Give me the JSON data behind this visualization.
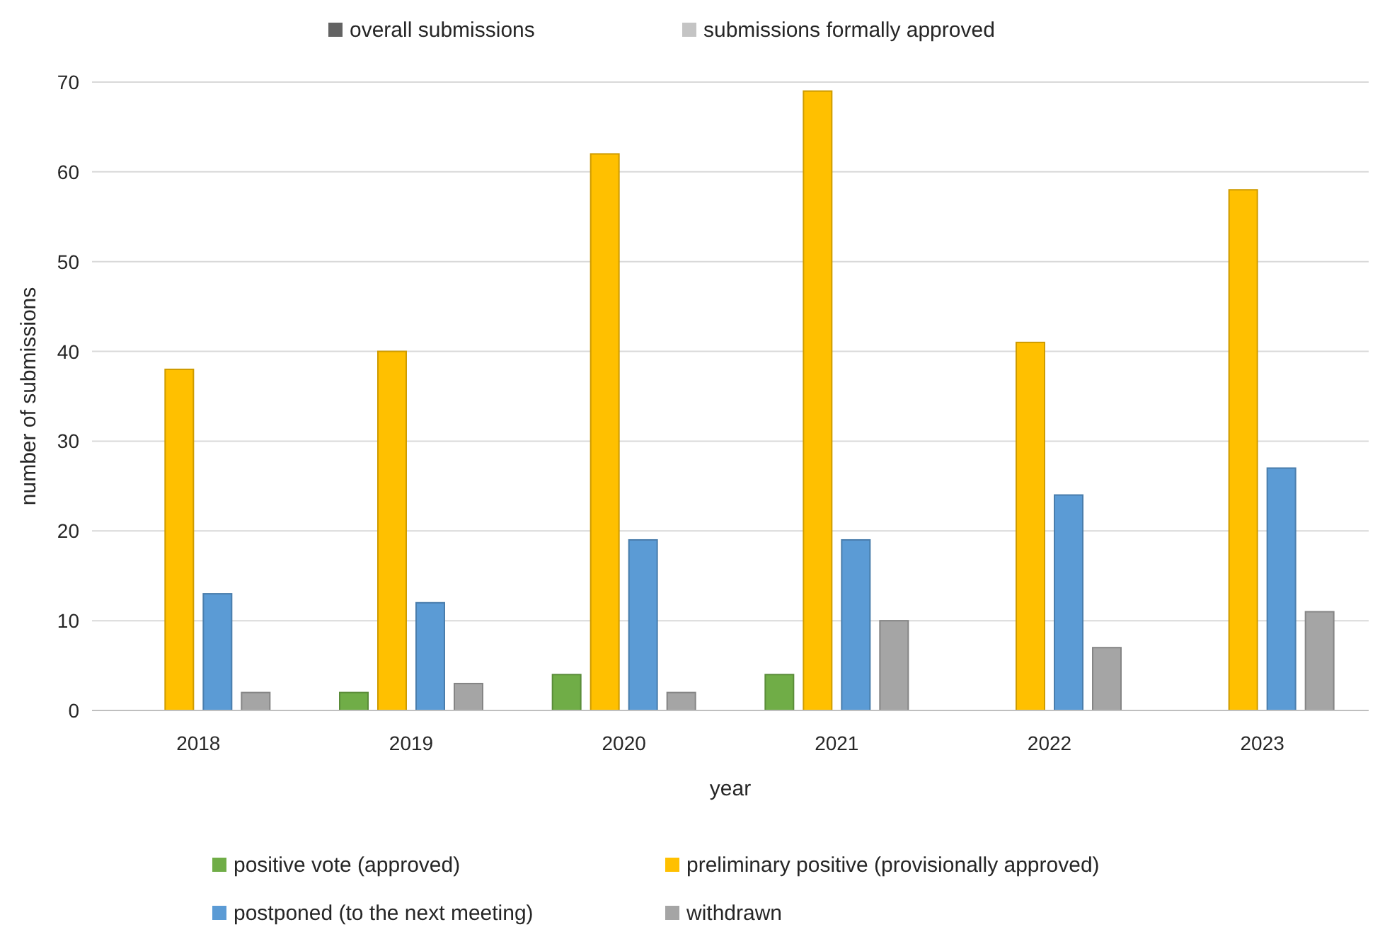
{
  "chart_data": {
    "type": "bar",
    "xlabel": "year",
    "ylabel": "number of submissions",
    "categories": [
      "2018",
      "2019",
      "2020",
      "2021",
      "2022",
      "2023"
    ],
    "series": [
      {
        "name": "overall submissions",
        "color": "#636363",
        "values": [
          null,
          null,
          null,
          null,
          null,
          null
        ]
      },
      {
        "name": "submissions formally approved",
        "color": "#c4c4c4",
        "values": [
          null,
          null,
          null,
          null,
          null,
          null
        ]
      },
      {
        "name": "positive vote (approved)",
        "color": "#70ad47",
        "values": [
          0,
          2,
          4,
          4,
          0,
          0
        ]
      },
      {
        "name": "preliminary positive (provisionally approved)",
        "color": "#ffc000",
        "values": [
          38,
          40,
          62,
          69,
          41,
          58
        ]
      },
      {
        "name": "postponed (to the next meeting)",
        "color": "#5b9bd5",
        "values": [
          13,
          12,
          19,
          19,
          24,
          27
        ]
      },
      {
        "name": "withdrawn",
        "color": "#a5a5a5",
        "values": [
          2,
          3,
          2,
          10,
          7,
          11
        ]
      }
    ],
    "ylim": [
      0,
      70
    ],
    "yticks": [
      0,
      10,
      20,
      30,
      40,
      50,
      60,
      70
    ],
    "grid": "y",
    "legend": "bottom"
  }
}
